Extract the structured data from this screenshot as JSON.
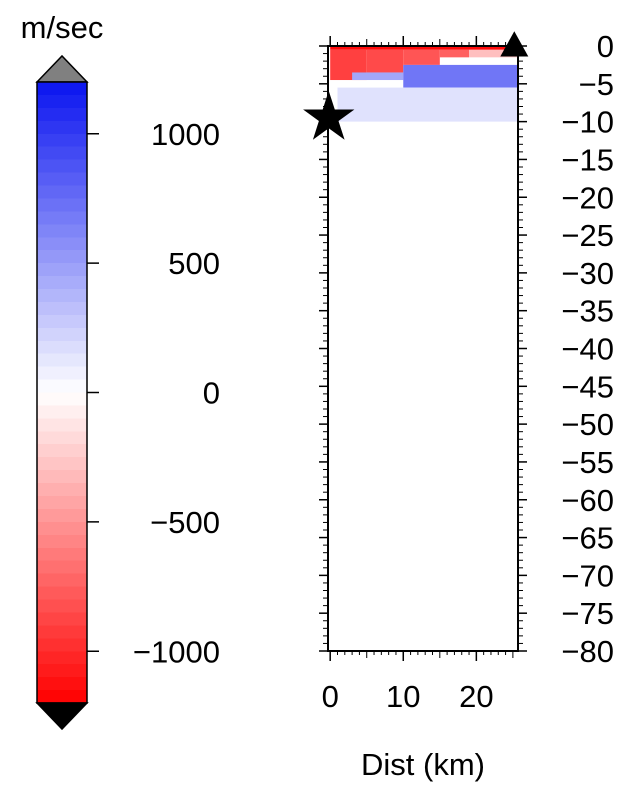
{
  "chart_data": [
    {
      "type": "colorbar",
      "unit_label": "m/sec",
      "range": [
        -1200,
        1200
      ],
      "ticks": [
        1000,
        500,
        0,
        -500,
        -1000
      ],
      "tick_labels": [
        "1000",
        "500",
        "0",
        "−500",
        "−1000"
      ],
      "colors": {
        "high": "#0a14f0",
        "mid": "#ffffff",
        "low": "#ff0000",
        "overflow_high": "#808080",
        "overflow_low": "#000000"
      }
    },
    {
      "type": "heatmap",
      "xlabel": "Dist (km)",
      "xlim": [
        -0.3,
        25.7
      ],
      "ylim": [
        -80,
        0
      ],
      "x_ticks": [
        0,
        10,
        20
      ],
      "x_tick_labels": [
        "0",
        "10",
        "20"
      ],
      "y_ticks": [
        0,
        -5,
        -10,
        -15,
        -20,
        -25,
        -30,
        -35,
        -40,
        -45,
        -50,
        -55,
        -60,
        -65,
        -70,
        -75,
        -80
      ],
      "y_tick_labels": [
        "0",
        "−5",
        "−10",
        "−15",
        "−20",
        "−25",
        "−30",
        "−35",
        "−40",
        "−45",
        "−50",
        "−55",
        "−60",
        "−65",
        "−70",
        "−75",
        "−80"
      ],
      "markers": [
        {
          "kind": "star",
          "x": -0.2,
          "y": -9.5
        },
        {
          "kind": "triangle",
          "x": 25.2,
          "y": 0
        }
      ],
      "anomalies": [
        {
          "x": [
            0,
            25.7
          ],
          "y": [
            -0.5,
            0
          ],
          "value": -1150
        },
        {
          "x": [
            0,
            5
          ],
          "y": [
            -4.5,
            -0.5
          ],
          "value": -900
        },
        {
          "x": [
            5,
            10
          ],
          "y": [
            -3.5,
            -0.5
          ],
          "value": -850
        },
        {
          "x": [
            10,
            15
          ],
          "y": [
            -2.5,
            -0.5
          ],
          "value": -800
        },
        {
          "x": [
            15,
            19
          ],
          "y": [
            -1.5,
            -0.5
          ],
          "value": -750
        },
        {
          "x": [
            19,
            25.7
          ],
          "y": [
            -1.5,
            -0.5
          ],
          "value": -300
        },
        {
          "x": [
            3,
            10
          ],
          "y": [
            -4.5,
            -3.5
          ],
          "value": 450
        },
        {
          "x": [
            10,
            25.7
          ],
          "y": [
            -5.5,
            -2.5
          ],
          "value": 700
        },
        {
          "x": [
            1,
            25.7
          ],
          "y": [
            -10,
            -5.5
          ],
          "value": 150
        }
      ]
    }
  ]
}
